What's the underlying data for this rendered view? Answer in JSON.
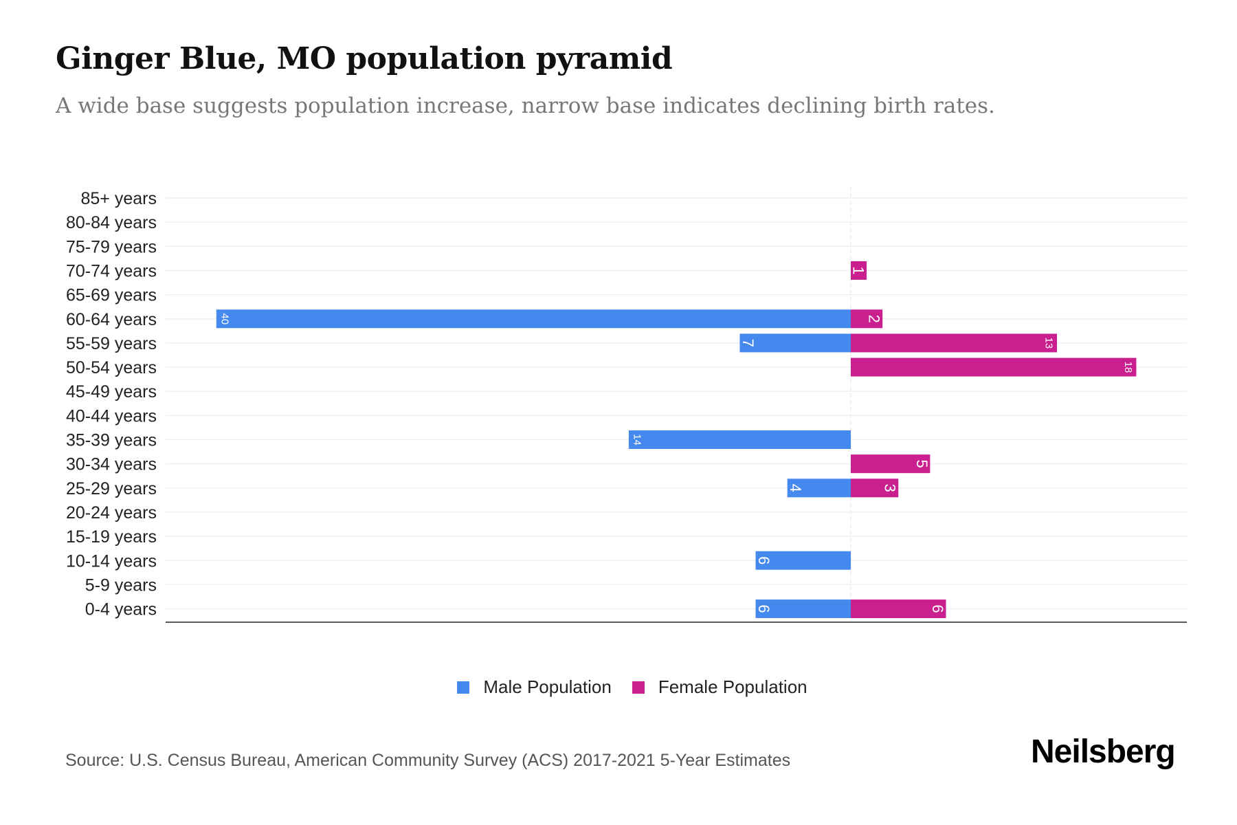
{
  "title": "Ginger Blue, MO population pyramid",
  "subtitle": "A wide base suggests population increase, narrow base indicates declining birth rates.",
  "source": "Source: U.S. Census Bureau, American Community Survey (ACS) 2017-2021 5-Year Estimates",
  "logo": "Neilsberg",
  "colors": {
    "male": "#4589EE",
    "female": "#C91F8F"
  },
  "chart_data": {
    "type": "bar",
    "orientation": "horizontal-pyramid",
    "title": "Ginger Blue, MO population pyramid",
    "categories": [
      "85+ years",
      "80-84 years",
      "75-79 years",
      "70-74 years",
      "65-69 years",
      "60-64 years",
      "55-59 years",
      "50-54 years",
      "45-49 years",
      "40-44 years",
      "35-39 years",
      "30-34 years",
      "25-29 years",
      "20-24 years",
      "15-19 years",
      "10-14 years",
      "5-9 years",
      "0-4 years"
    ],
    "series": [
      {
        "name": "Male Population",
        "values": [
          0,
          0,
          0,
          0,
          0,
          40,
          7,
          0,
          0,
          0,
          14,
          0,
          4,
          0,
          0,
          6,
          0,
          6
        ]
      },
      {
        "name": "Female Population",
        "values": [
          0,
          0,
          0,
          1,
          0,
          2,
          13,
          18,
          0,
          0,
          0,
          5,
          3,
          0,
          0,
          0,
          0,
          6
        ]
      }
    ],
    "xlim": [
      -43,
      21
    ],
    "legend": "bottom-center",
    "grid": true
  }
}
